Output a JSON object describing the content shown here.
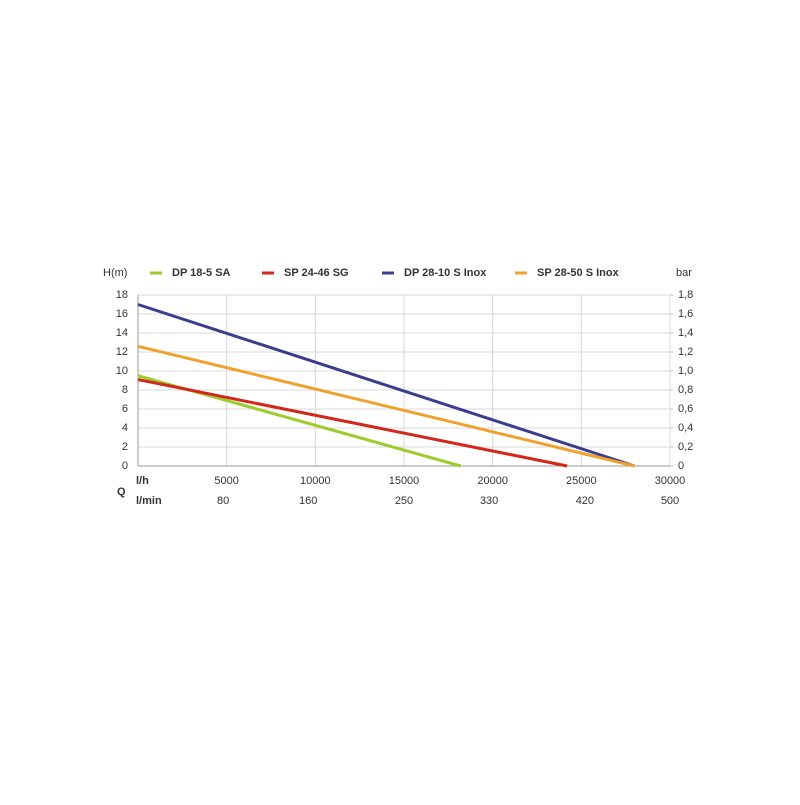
{
  "chart_data": {
    "type": "line",
    "y_label": "H(m)",
    "y2_label": "bar",
    "x_label": "l/h",
    "x2_label": "l/min",
    "x_axis_title": "Q",
    "series": [
      {
        "name": "DP 18-5 SA",
        "color": "#9ccb2c",
        "x": [
          0,
          18200
        ],
        "values": [
          9.5,
          0
        ]
      },
      {
        "name": "SP 24-46 SG",
        "color": "#d2281c",
        "x": [
          0,
          24200
        ],
        "values": [
          9.1,
          0
        ]
      },
      {
        "name": "DP 28-10 S Inox",
        "color": "#3a3d8c",
        "x": [
          0,
          28000
        ],
        "values": [
          17,
          0
        ]
      },
      {
        "name": "SP 28-50 S Inox",
        "color": "#f0a02c",
        "x": [
          0,
          28000
        ],
        "values": [
          12.6,
          0
        ]
      }
    ],
    "xlim": [
      0,
      30000
    ],
    "xticks": [
      5000,
      10000,
      15000,
      20000,
      25000,
      30000
    ],
    "x2lim": [
      0,
      500
    ],
    "x2ticks": [
      80,
      160,
      250,
      330,
      420,
      500
    ],
    "ylim": [
      0,
      18
    ],
    "yticks": [
      0,
      2,
      4,
      6,
      8,
      10,
      12,
      14,
      16,
      18
    ],
    "y2lim": [
      0,
      1.8
    ],
    "y2ticks": [
      {
        "value": 0,
        "label": "0"
      },
      {
        "value": 0.2,
        "label": "0,2"
      },
      {
        "value": 0.4,
        "label": "0,4"
      },
      {
        "value": 0.6,
        "label": "0,6"
      },
      {
        "value": 0.8,
        "label": "0,8"
      },
      {
        "value": 1.0,
        "label": "1,0"
      },
      {
        "value": 1.2,
        "label": "1,2"
      },
      {
        "value": 1.4,
        "label": "1,4"
      },
      {
        "value": 1.6,
        "label": "1,6"
      },
      {
        "value": 1.8,
        "label": "1,8"
      }
    ],
    "grid": true
  }
}
